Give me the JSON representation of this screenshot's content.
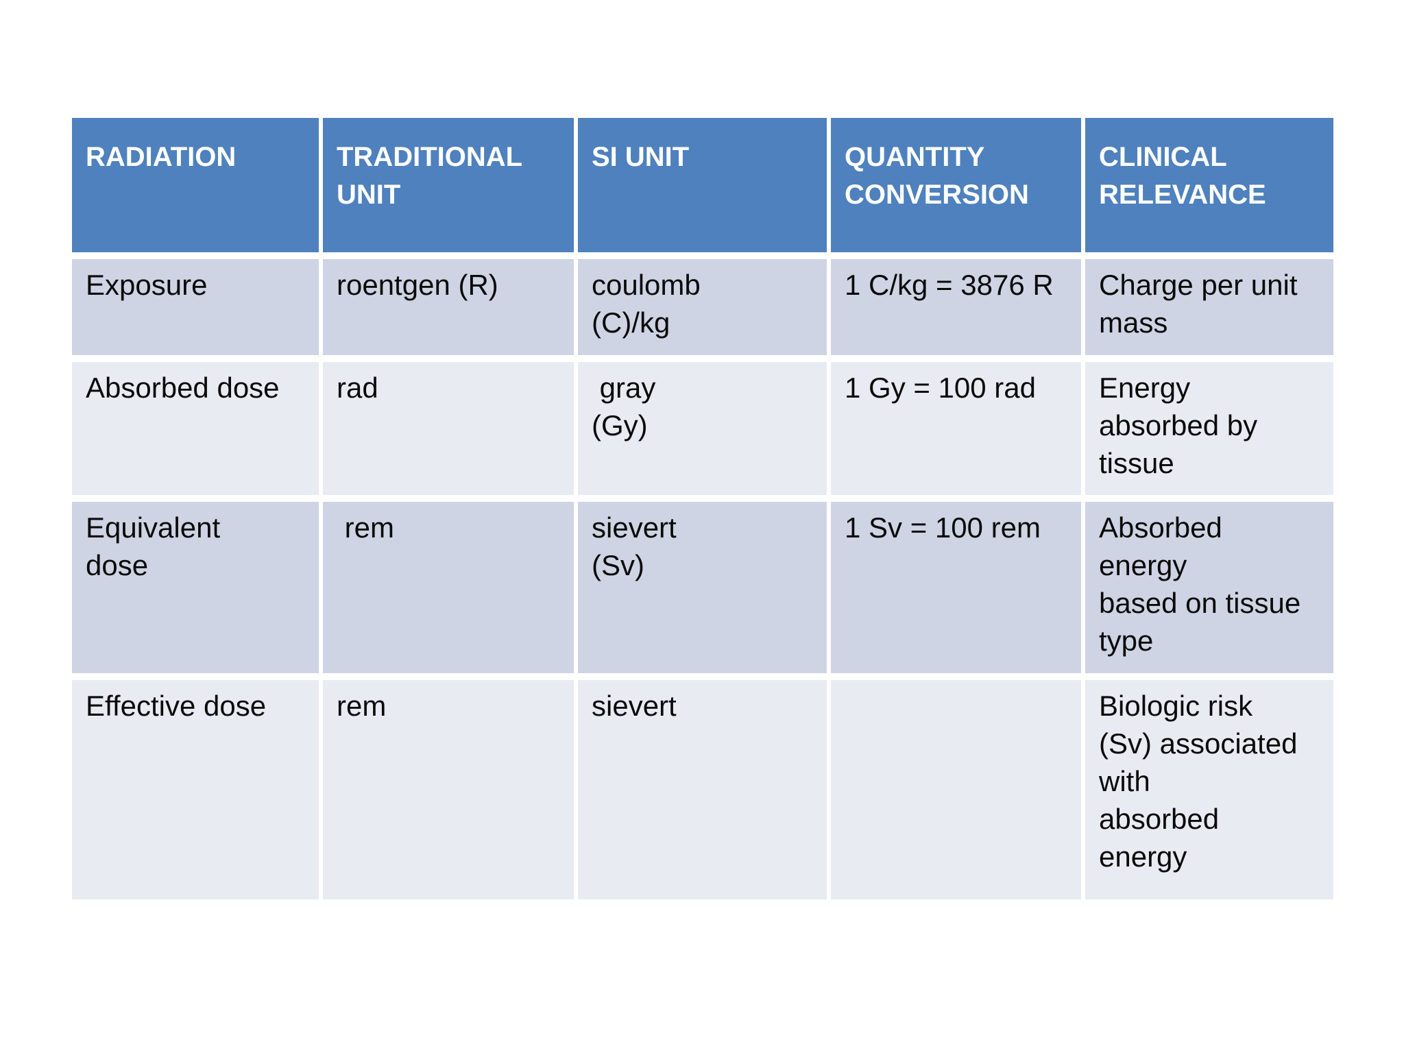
{
  "canvas_background": "#ffffff",
  "table": {
    "colors": {
      "header_bg": "#4e81bd",
      "header_text": "#ffffff",
      "band_dark": "#ced4e3",
      "band_light": "#e9ebf2",
      "body_text": "#0a0a0a",
      "separator": "#ffffff"
    },
    "header": {
      "columns": [
        "RADIATION",
        "TRADITIONAL\nUNIT",
        "SI UNIT",
        "QUANTITY\nCONVERSION",
        "CLINICAL\nRELEVANCE"
      ]
    },
    "rows": [
      {
        "radiation": "Exposure",
        "traditional_unit": "roentgen (R)",
        "si_unit": "coulomb\n(C)/kg",
        "quantity_conversion": "1 C/kg = 3876 R",
        "clinical_relevance": "Charge per unit\nmass"
      },
      {
        "radiation": "Absorbed dose",
        "traditional_unit": "rad",
        "si_unit": " gray\n(Gy)",
        "quantity_conversion": "1 Gy = 100 rad",
        "clinical_relevance": "Energy\nabsorbed by\ntissue"
      },
      {
        "radiation": "Equivalent\ndose",
        "traditional_unit": " rem",
        "si_unit": "sievert\n(Sv)",
        "quantity_conversion": "1 Sv = 100 rem",
        "clinical_relevance": "Absorbed\nenergy\nbased on tissue\ntype"
      },
      {
        "radiation": "Effective dose",
        "traditional_unit": "rem",
        "si_unit": "sievert",
        "quantity_conversion": "",
        "clinical_relevance": "Biologic risk\n(Sv) associated\nwith\nabsorbed\nenergy"
      }
    ]
  }
}
